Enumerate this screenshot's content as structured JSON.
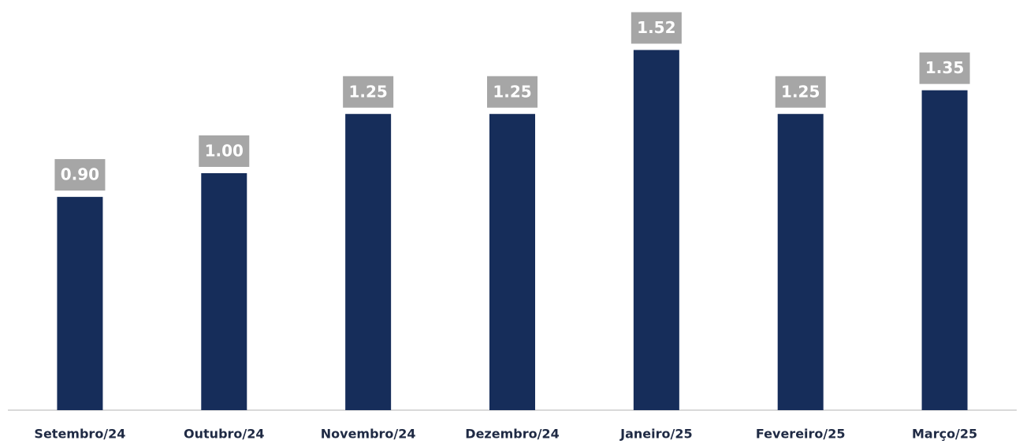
{
  "chart_data": {
    "type": "bar",
    "categories": [
      "Setembro/24",
      "Outubro/24",
      "Novembro/24",
      "Dezembro/24",
      "Janeiro/25",
      "Fevereiro/25",
      "Março/25"
    ],
    "values": [
      0.9,
      1.0,
      1.25,
      1.25,
      1.52,
      1.25,
      1.35
    ],
    "value_labels": [
      "0.90",
      "1.00",
      "1.25",
      "1.25",
      "1.52",
      "1.25",
      "1.35"
    ],
    "color": "#162d5a"
  }
}
